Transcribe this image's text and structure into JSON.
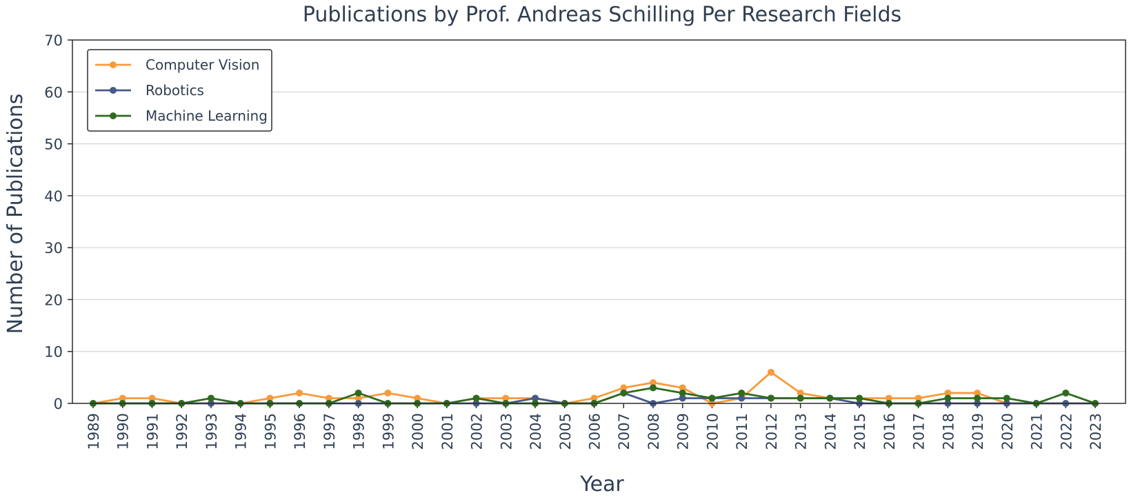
{
  "chart_data": {
    "type": "line",
    "title": "Publications by Prof. Andreas Schilling Per Research Fields",
    "xlabel": "Year",
    "ylabel": "Number of Publications",
    "ylim": [
      0,
      70
    ],
    "yticks": [
      "0",
      "10",
      "20",
      "30",
      "40",
      "50",
      "60",
      "70"
    ],
    "grid": true,
    "legend_position": "top-left",
    "categories": [
      "1989",
      "1990",
      "1991",
      "1992",
      "1993",
      "1994",
      "1995",
      "1996",
      "1997",
      "1998",
      "1999",
      "2000",
      "2001",
      "2002",
      "2003",
      "2004",
      "2005",
      "2006",
      "2007",
      "2008",
      "2009",
      "2010",
      "2011",
      "2012",
      "2013",
      "2014",
      "2015",
      "2016",
      "2017",
      "2018",
      "2019",
      "2020",
      "2021",
      "2022",
      "2023"
    ],
    "series": [
      {
        "name": "Computer Vision",
        "color": "#f89a3a",
        "values": [
          0,
          1,
          1,
          0,
          0,
          0,
          1,
          2,
          1,
          1,
          2,
          1,
          0,
          1,
          1,
          1,
          0,
          1,
          3,
          4,
          3,
          0,
          1,
          6,
          2,
          1,
          1,
          1,
          1,
          2,
          2,
          0,
          0,
          0,
          0
        ]
      },
      {
        "name": "Robotics",
        "color": "#46598a",
        "values": [
          0,
          0,
          0,
          0,
          0,
          0,
          0,
          0,
          0,
          0,
          0,
          0,
          0,
          0,
          0,
          1,
          0,
          0,
          2,
          0,
          1,
          1,
          1,
          1,
          1,
          1,
          0,
          0,
          0,
          0,
          0,
          0,
          0,
          0,
          0
        ]
      },
      {
        "name": "Machine Learning",
        "color": "#2e6b1e",
        "values": [
          0,
          0,
          0,
          0,
          1,
          0,
          0,
          0,
          0,
          2,
          0,
          0,
          0,
          1,
          0,
          0,
          0,
          0,
          2,
          3,
          2,
          1,
          2,
          1,
          1,
          1,
          1,
          0,
          0,
          1,
          1,
          1,
          0,
          2,
          0
        ]
      }
    ]
  }
}
